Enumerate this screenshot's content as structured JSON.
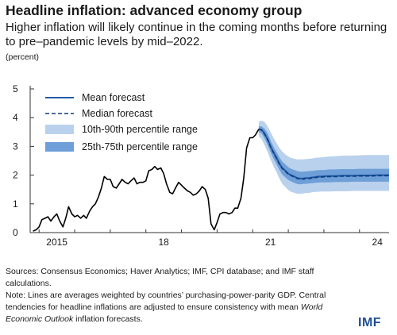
{
  "header": {
    "title": "Headline inflation: advanced economy group",
    "subtitle": "Higher inflation will likely continue in the coming months before returning to pre–pandemic levels by mid–2022.",
    "unit": "(percent)"
  },
  "footer": {
    "sources": "Sources: Consensus Economics; Haver Analytics; IMF, CPI database; and IMF staff calculations.",
    "note_prefix": "Note: Lines are averages weighted by countries’ purchasing-power-parity GDP. Central tendencies for headline inflations are adjusted to ensure consistency with mean ",
    "note_italic": "World Economic Outlook",
    "note_suffix": " inflation forecasts.",
    "logo": "IMF"
  },
  "colors": {
    "history": "#000000",
    "forecast": "#1f5aa6",
    "band_outer": "#b9d1ec",
    "band_inner": "#6f9fd8"
  },
  "chart_data": {
    "type": "line",
    "ylim": [
      0,
      5
    ],
    "yticks": [
      0,
      1,
      2,
      3,
      4,
      5
    ],
    "xlim": [
      2014.75,
      2024.83
    ],
    "xticks": [
      {
        "value": 2015,
        "label": "2015"
      },
      {
        "value": 2018,
        "label": "18"
      },
      {
        "value": 2021,
        "label": "21"
      },
      {
        "value": 2024,
        "label": "24"
      }
    ],
    "legend_position": "top-left",
    "legend": [
      {
        "key": "mean",
        "label": "Mean forecast"
      },
      {
        "key": "median",
        "label": "Median forecast"
      },
      {
        "key": "p10_90",
        "label": "10th-90th percentile range"
      },
      {
        "key": "p25_75",
        "label": "25th-75th percentile range"
      }
    ],
    "history": {
      "x": [
        2014.83,
        2014.92,
        2015.0,
        2015.08,
        2015.17,
        2015.25,
        2015.33,
        2015.42,
        2015.5,
        2015.58,
        2015.67,
        2015.75,
        2015.83,
        2015.92,
        2016.0,
        2016.08,
        2016.17,
        2016.25,
        2016.33,
        2016.42,
        2016.5,
        2016.58,
        2016.67,
        2016.75,
        2016.83,
        2016.92,
        2017.0,
        2017.08,
        2017.17,
        2017.25,
        2017.33,
        2017.42,
        2017.5,
        2017.58,
        2017.67,
        2017.75,
        2017.83,
        2017.92,
        2018.0,
        2018.08,
        2018.17,
        2018.25,
        2018.33,
        2018.42,
        2018.5,
        2018.58,
        2018.67,
        2018.75,
        2018.83,
        2018.92,
        2019.0,
        2019.08,
        2019.17,
        2019.25,
        2019.33,
        2019.42,
        2019.5,
        2019.58,
        2019.67,
        2019.75,
        2019.83,
        2019.92,
        2020.0,
        2020.08,
        2020.17,
        2020.25,
        2020.33,
        2020.42,
        2020.5,
        2020.58,
        2020.67,
        2020.75,
        2020.83,
        2020.92,
        2021.0,
        2021.08,
        2021.17
      ],
      "y": [
        0.05,
        0.1,
        0.2,
        0.45,
        0.5,
        0.55,
        0.4,
        0.55,
        0.65,
        0.4,
        0.2,
        0.5,
        0.9,
        0.65,
        0.55,
        0.6,
        0.5,
        0.6,
        0.5,
        0.75,
        0.9,
        1.0,
        1.25,
        1.55,
        1.95,
        1.85,
        1.85,
        1.6,
        1.55,
        1.7,
        1.85,
        1.75,
        1.7,
        1.8,
        1.9,
        1.7,
        1.75,
        1.75,
        1.8,
        2.15,
        2.2,
        2.3,
        2.2,
        2.25,
        2.05,
        1.7,
        1.4,
        1.35,
        1.55,
        1.75,
        1.65,
        1.55,
        1.45,
        1.4,
        1.3,
        1.35,
        1.45,
        1.6,
        1.5,
        1.2,
        0.3,
        0.1,
        0.35,
        0.65,
        0.7,
        0.7,
        0.65,
        0.7,
        0.85,
        0.85,
        1.2,
        1.9,
        2.95,
        3.3,
        3.3,
        3.4,
        3.6
      ]
    },
    "forecast": {
      "x": [
        2021.17,
        2021.25,
        2021.33,
        2021.42,
        2021.5,
        2021.58,
        2021.67,
        2021.75,
        2021.83,
        2021.92,
        2022.0,
        2022.08,
        2022.17,
        2022.25,
        2022.33,
        2022.42,
        2022.5,
        2022.58,
        2022.67,
        2022.75,
        2022.83,
        2022.92,
        2023.0,
        2023.17,
        2023.33,
        2023.5,
        2023.67,
        2023.83,
        2024.0,
        2024.17,
        2024.33,
        2024.5,
        2024.67,
        2024.83
      ],
      "mean": [
        3.6,
        3.58,
        3.45,
        3.25,
        3.0,
        2.8,
        2.6,
        2.4,
        2.25,
        2.15,
        2.05,
        2.0,
        1.95,
        1.9,
        1.88,
        1.88,
        1.9,
        1.9,
        1.92,
        1.93,
        1.95,
        1.95,
        1.96,
        1.97,
        1.97,
        1.98,
        1.98,
        1.98,
        1.99,
        1.99,
        1.99,
        2.0,
        2.0,
        2.0
      ],
      "median": [
        3.6,
        3.57,
        3.43,
        3.23,
        2.98,
        2.78,
        2.58,
        2.38,
        2.23,
        2.13,
        2.03,
        1.98,
        1.93,
        1.88,
        1.86,
        1.86,
        1.88,
        1.88,
        1.9,
        1.91,
        1.93,
        1.93,
        1.94,
        1.95,
        1.95,
        1.96,
        1.96,
        1.96,
        1.97,
        1.97,
        1.97,
        1.98,
        1.98,
        1.98
      ],
      "p10": [
        3.35,
        3.25,
        3.05,
        2.8,
        2.55,
        2.32,
        2.1,
        1.88,
        1.7,
        1.58,
        1.48,
        1.42,
        1.38,
        1.35,
        1.35,
        1.36,
        1.38,
        1.38,
        1.4,
        1.42,
        1.42,
        1.43,
        1.43,
        1.43,
        1.44,
        1.44,
        1.44,
        1.45,
        1.45,
        1.45,
        1.45,
        1.45,
        1.45,
        1.45
      ],
      "p90": [
        3.85,
        3.9,
        3.85,
        3.7,
        3.5,
        3.3,
        3.12,
        2.95,
        2.82,
        2.72,
        2.65,
        2.6,
        2.57,
        2.55,
        2.55,
        2.55,
        2.56,
        2.57,
        2.58,
        2.6,
        2.61,
        2.62,
        2.63,
        2.65,
        2.66,
        2.67,
        2.68,
        2.68,
        2.69,
        2.7,
        2.7,
        2.7,
        2.7,
        2.7
      ],
      "p25": [
        3.5,
        3.45,
        3.28,
        3.05,
        2.8,
        2.58,
        2.38,
        2.18,
        2.02,
        1.92,
        1.83,
        1.78,
        1.73,
        1.69,
        1.68,
        1.69,
        1.7,
        1.71,
        1.72,
        1.73,
        1.74,
        1.75,
        1.75,
        1.75,
        1.76,
        1.76,
        1.76,
        1.77,
        1.77,
        1.77,
        1.77,
        1.77,
        1.77,
        1.77
      ],
      "p75": [
        3.7,
        3.7,
        3.62,
        3.45,
        3.2,
        3.0,
        2.8,
        2.62,
        2.47,
        2.37,
        2.28,
        2.22,
        2.18,
        2.14,
        2.12,
        2.12,
        2.13,
        2.14,
        2.15,
        2.16,
        2.17,
        2.18,
        2.18,
        2.2,
        2.2,
        2.21,
        2.21,
        2.21,
        2.22,
        2.22,
        2.22,
        2.22,
        2.22,
        2.22
      ]
    }
  }
}
